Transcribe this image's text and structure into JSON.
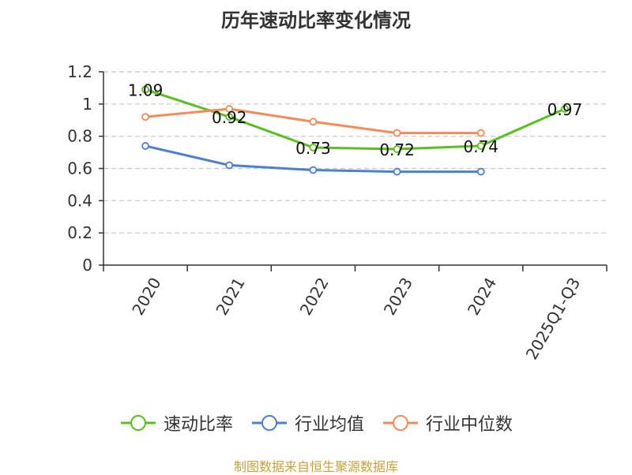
{
  "chart_data": {
    "type": "line",
    "title": "历年速动比率变化情况",
    "categories": [
      "2020",
      "2021",
      "2022",
      "2023",
      "2024",
      "2025Q1-Q3"
    ],
    "ylim": [
      0,
      1.2
    ],
    "yticks": [
      0,
      0.2,
      0.4,
      0.6,
      0.8,
      1,
      1.2
    ],
    "ytick_labels": [
      "0",
      "0.2",
      "0.4",
      "0.6",
      "0.8",
      "1",
      "1.2"
    ],
    "grid": true,
    "legend_position": "bottom",
    "series": [
      {
        "name": "速动比率",
        "color": "#5bbf21",
        "values": [
          1.09,
          0.92,
          0.73,
          0.72,
          0.74,
          0.97
        ],
        "labels": [
          "1.09",
          "0.92",
          "0.73",
          "0.72",
          "0.74",
          "0.97"
        ],
        "show_labels": true
      },
      {
        "name": "行业均值",
        "color": "#4a7fd4",
        "values": [
          0.74,
          0.62,
          0.59,
          0.58,
          0.58,
          null
        ],
        "show_labels": false
      },
      {
        "name": "行业中位数",
        "color": "#f28c5b",
        "values": [
          0.92,
          0.97,
          0.89,
          0.82,
          0.82,
          null
        ],
        "show_labels": false
      }
    ]
  },
  "source": "制图数据来自恒生聚源数据库"
}
